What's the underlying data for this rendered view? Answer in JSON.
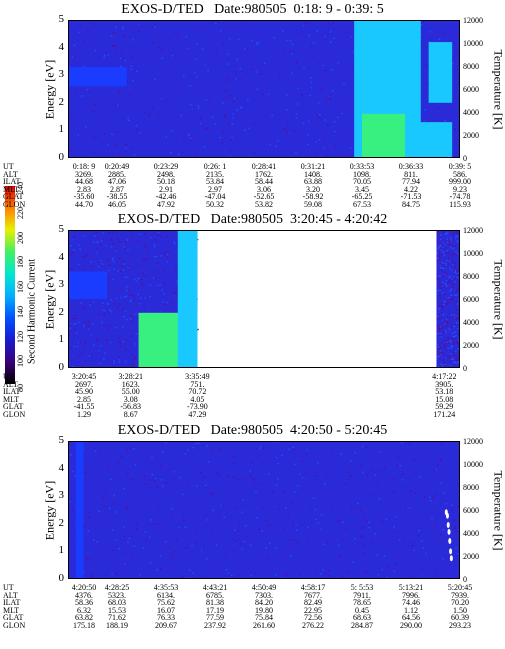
{
  "colorbar": {
    "label": "Second Harmonic Current",
    "ticks": [
      "80",
      "100",
      "120",
      "140",
      "160",
      "180",
      "200",
      "220",
      "240"
    ],
    "colors": [
      "#000000",
      "#3a007a",
      "#1a1ad0",
      "#0050ff",
      "#00b0ff",
      "#00e8d0",
      "#40f060",
      "#e8f000",
      "#ff8000",
      "#e00000"
    ]
  },
  "chart_data": [
    {
      "type": "heatmap",
      "title": "EXOS-D/TED   Date:980505  0:18: 9 - 0:39: 5",
      "ylabel": "Energy [eV]",
      "y2label": "Temperature [K]",
      "yticks": [
        "0",
        "1",
        "2",
        "3",
        "4",
        "5"
      ],
      "ylim": [
        0,
        5
      ],
      "y2ticks": [
        "0",
        "2000",
        "4000",
        "6000",
        "8000",
        "10000",
        "12000"
      ],
      "y2lim": [
        0,
        12000
      ],
      "data_extent": [
        0,
        1
      ],
      "features": [
        {
          "x": [
            0.0,
            0.15
          ],
          "y": [
            2.6,
            3.3
          ],
          "level": "blue"
        },
        {
          "x": [
            0.73,
            0.9
          ],
          "y": [
            0,
            5
          ],
          "level": "cyan"
        },
        {
          "x": [
            0.75,
            0.86
          ],
          "y": [
            0,
            1.6
          ],
          "level": "green"
        },
        {
          "x": [
            0.92,
            0.98
          ],
          "y": [
            2.0,
            4.2
          ],
          "level": "cyan"
        },
        {
          "x": [
            0.86,
            0.98
          ],
          "y": [
            0,
            1.3
          ],
          "level": "cyan"
        }
      ],
      "orbit_table": {
        "rows": [
          "UT",
          "ALT",
          "ILAT",
          "MLT",
          "GLAT",
          "GLON"
        ],
        "columns": [
          [
            "0:18: 9",
            "3269.",
            "44.68",
            "2.83",
            "-35.60",
            "44.70"
          ],
          [
            "0:20:49",
            "2885.",
            "47.06",
            "2.87",
            "-38.55",
            "46.05"
          ],
          [
            "0:23:29",
            "2498.",
            "50.18",
            "2.91",
            "-42.46",
            "47.92"
          ],
          [
            "0:26: 1",
            "2135.",
            "53.84",
            "2.97",
            "-47.04",
            "50.32"
          ],
          [
            "0:28:41",
            "1762.",
            "58.44",
            "3.06",
            "-52.65",
            "53.82"
          ],
          [
            "0:31:21",
            "1408.",
            "63.88",
            "3.20",
            "-58.92",
            "59.08"
          ],
          [
            "0:33:53",
            "1098.",
            "70.05",
            "3.45",
            "-65.25",
            "67.53"
          ],
          [
            "0:36:33",
            "811.",
            "77.94",
            "4.22",
            "-71.53",
            "84.75"
          ],
          [
            "0:39: 5",
            "586.",
            "999.00",
            "9.23",
            "-74.78",
            "115.93"
          ]
        ]
      }
    },
    {
      "type": "heatmap",
      "title": "EXOS-D/TED   Date:980505  3:20:45 - 4:20:42",
      "ylabel": "Energy [eV]",
      "y2label": "Temperature [K]",
      "yticks": [
        "0",
        "1",
        "2",
        "3",
        "4",
        "5"
      ],
      "ylim": [
        0,
        5
      ],
      "y2ticks": [
        "0",
        "2000",
        "4000",
        "6000",
        "8000",
        "10000",
        "12000"
      ],
      "y2lim": [
        0,
        12000
      ],
      "data_extent": [
        0,
        0.33
      ],
      "data_extent_2": [
        0.94,
        1.0
      ],
      "features": [
        {
          "x": [
            0.0,
            0.1
          ],
          "y": [
            2.5,
            3.5
          ],
          "level": "blue"
        },
        {
          "x": [
            0.18,
            0.33
          ],
          "y": [
            0,
            2.0
          ],
          "level": "green"
        },
        {
          "x": [
            0.28,
            0.33
          ],
          "y": [
            0,
            5
          ],
          "level": "cyan"
        }
      ],
      "orbit_table": {
        "rows": [
          "UT",
          "ALT",
          "ILAT",
          "MLT",
          "GLAT",
          "GLON"
        ],
        "columns": [
          [
            "3:20:45",
            "2697.",
            "45.90",
            "2.85",
            "-41.55",
            "1.29"
          ],
          [
            "3:28:21",
            "1623.",
            "55.00",
            "3.08",
            "-56.83",
            "8.67"
          ],
          [
            "3:35:49",
            "751.",
            "70.72",
            "4.05",
            "-73.90",
            "47.29"
          ],
          [
            "4:17:22",
            "3905.",
            "53.18",
            "15.08",
            "59.29",
            "171.24"
          ]
        ]
      }
    },
    {
      "type": "heatmap",
      "title": "EXOS-D/TED   Date:980505  4:20:50 - 5:20:45",
      "ylabel": "Energy [eV]",
      "y2label": "Temperature [K]",
      "yticks": [
        "0",
        "1",
        "2",
        "3",
        "4",
        "5"
      ],
      "ylim": [
        0,
        5
      ],
      "y2ticks": [
        "0",
        "2000",
        "4000",
        "6000",
        "8000",
        "10000",
        "12000"
      ],
      "y2lim": [
        0,
        12000
      ],
      "data_extent": [
        0,
        1
      ],
      "features": [
        {
          "x": [
            0.02,
            0.04
          ],
          "y": [
            0,
            5
          ],
          "level": "blue"
        }
      ],
      "temperature_points": [
        {
          "x": 0.965,
          "y": 5800
        },
        {
          "x": 0.968,
          "y": 5500
        },
        {
          "x": 0.97,
          "y": 4700
        },
        {
          "x": 0.972,
          "y": 4100
        },
        {
          "x": 0.974,
          "y": 3300
        },
        {
          "x": 0.976,
          "y": 2400
        },
        {
          "x": 0.978,
          "y": 1800
        }
      ],
      "orbit_table": {
        "rows": [
          "UT",
          "ALT",
          "ILAT",
          "MLT",
          "GLAT",
          "GLON"
        ],
        "columns": [
          [
            "4:20:50",
            "4376.",
            "58.36",
            "6.32",
            "63.82",
            "175.18"
          ],
          [
            "4:28:25",
            "5323.",
            "68.03",
            "15.53",
            "71.62",
            "188.19"
          ],
          [
            "4:35:53",
            "6134.",
            "75.62",
            "16.07",
            "76.33",
            "209.67"
          ],
          [
            "4:43:21",
            "6785.",
            "81.38",
            "17.19",
            "77.59",
            "237.92"
          ],
          [
            "4:50:49",
            "7303.",
            "84.20",
            "19.80",
            "75.84",
            "261.60"
          ],
          [
            "4:58:17",
            "7677.",
            "82.49",
            "22.95",
            "72.56",
            "276.22"
          ],
          [
            "5: 5:53",
            "7911.",
            "78.65",
            "0.45",
            "68.63",
            "284.87"
          ],
          [
            "5:13:21",
            "7996.",
            "74.46",
            "1.12",
            "64.56",
            "290.00"
          ],
          [
            "5:20:45",
            "7939.",
            "70.20",
            "1.50",
            "60.39",
            "293.23"
          ]
        ]
      }
    }
  ]
}
